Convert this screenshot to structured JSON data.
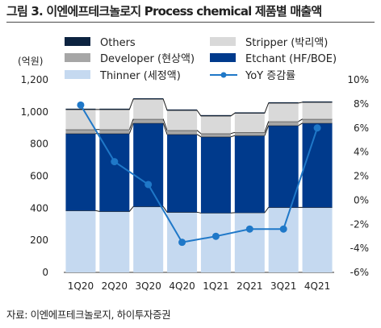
{
  "chart_data": {
    "type": "bar",
    "title": "그림 3. 이엔에프테크놀로지 Process chemical 제품별 매출액",
    "left_unit": "(억원)",
    "categories": [
      "1Q20",
      "2Q20",
      "3Q20",
      "4Q20",
      "1Q21",
      "2Q21",
      "3Q21",
      "4Q21"
    ],
    "stacked": true,
    "series": [
      {
        "name": "Thinner (세정액)",
        "values": [
          385,
          380,
          410,
          375,
          370,
          372,
          405,
          405
        ],
        "color": "#c5d9f0"
      },
      {
        "name": "Etchant (HF/BOE)",
        "values": [
          480,
          485,
          520,
          485,
          475,
          480,
          510,
          525
        ],
        "color": "#003a8c"
      },
      {
        "name": "Developer (현상액)",
        "values": [
          25,
          25,
          25,
          25,
          20,
          20,
          25,
          25
        ],
        "color": "#a6a6a6"
      },
      {
        "name": "Stripper (박리액)",
        "values": [
          125,
          125,
          125,
          125,
          110,
          120,
          115,
          105
        ],
        "color": "#d9d9d9"
      },
      {
        "name": "Others",
        "values": [
          5,
          5,
          5,
          5,
          5,
          5,
          5,
          5
        ],
        "color": "#0c2340"
      }
    ],
    "line_series": {
      "name": "YoY 증감률",
      "values": [
        7.9,
        3.2,
        1.3,
        -3.5,
        -3.0,
        -2.4,
        -2.4,
        6.0
      ],
      "color": "#1f78c8",
      "axis": "right"
    },
    "y_left": {
      "min": 0,
      "max": 1200,
      "ticks": [
        "0",
        "200",
        "400",
        "600",
        "800",
        "1,000",
        "1,200"
      ]
    },
    "y_right": {
      "min": -6,
      "max": 10,
      "ticks": [
        "-6%",
        "-4%",
        "-2%",
        "0%",
        "2%",
        "4%",
        "6%",
        "8%",
        "10%"
      ]
    },
    "grid": false,
    "legend_position": "top"
  },
  "source": "자료: 이엔에프테크놀로지, 하이투자증권"
}
